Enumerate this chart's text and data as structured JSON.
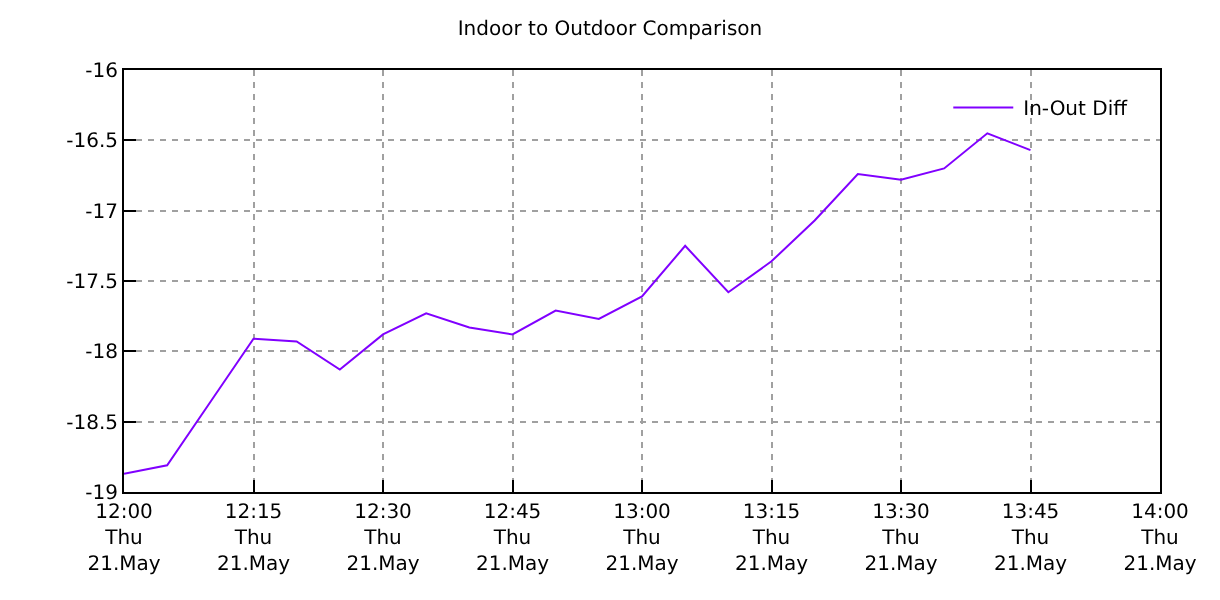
{
  "chart_data": {
    "type": "line",
    "title": "Indoor to Outdoor Comparison",
    "x": [
      "--05-21T12:00",
      "--05-21T12:05",
      "--05-21T12:10",
      "--05-21T12:15",
      "--05-21T12:20",
      "--05-21T12:25",
      "--05-21T12:30",
      "--05-21T12:35",
      "--05-21T12:40",
      "--05-21T12:45",
      "--05-21T12:50",
      "--05-21T12:55",
      "--05-21T13:00",
      "--05-21T13:05",
      "--05-21T13:10",
      "--05-21T13:15",
      "--05-21T13:20",
      "--05-21T13:25",
      "--05-21T13:30",
      "--05-21T13:35",
      "--05-21T13:40",
      "--05-21T13:45"
    ],
    "series": [
      {
        "name": "In-Out Diff",
        "color": "#8000ff",
        "values": [
          -18.87,
          -18.81,
          -18.36,
          -17.91,
          -17.93,
          -18.13,
          -17.88,
          -17.73,
          -17.83,
          -17.88,
          -17.71,
          -17.77,
          -17.61,
          -17.25,
          -17.58,
          -17.36,
          -17.07,
          -16.74,
          -16.78,
          -16.7,
          -16.45,
          -16.57
        ]
      }
    ],
    "xlim": [
      "--05-21T12:00",
      "--05-21T14:00"
    ],
    "xticks": [
      {
        "value": "--05-21T12:00",
        "label": "12:00\nThu\n21.May"
      },
      {
        "value": "--05-21T12:15",
        "label": "12:15\nThu\n21.May"
      },
      {
        "value": "--05-21T12:30",
        "label": "12:30\nThu\n21.May"
      },
      {
        "value": "--05-21T12:45",
        "label": "12:45\nThu\n21.May"
      },
      {
        "value": "--05-21T13:00",
        "label": "13:00\nThu\n21.May"
      },
      {
        "value": "--05-21T13:15",
        "label": "13:15\nThu\n21.May"
      },
      {
        "value": "--05-21T13:30",
        "label": "13:30\nThu\n21.May"
      },
      {
        "value": "--05-21T13:45",
        "label": "13:45\nThu\n21.May"
      },
      {
        "value": "--05-21T14:00",
        "label": "14:00\nThu\n21.May"
      }
    ],
    "ylim": [
      -19,
      -16
    ],
    "yticks": [
      -19,
      -18.5,
      -18,
      -17.5,
      -17,
      -16.5,
      -16
    ],
    "grid": true,
    "legend": "top right",
    "marker": "none",
    "line_style": "solid"
  }
}
